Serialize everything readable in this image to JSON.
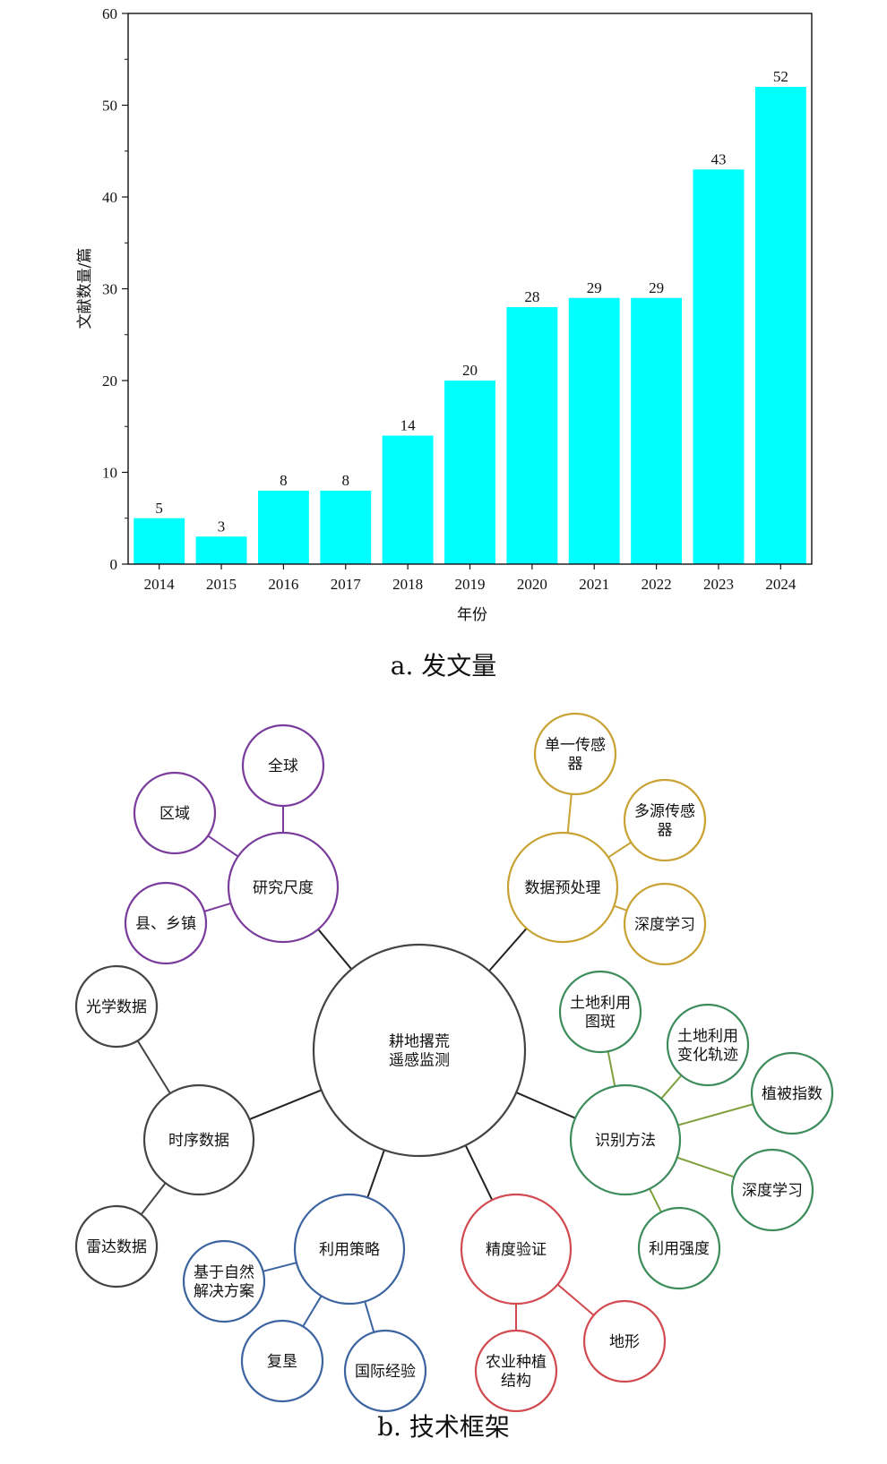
{
  "chart_data": {
    "type": "bar",
    "categories": [
      "2014",
      "2015",
      "2016",
      "2017",
      "2018",
      "2019",
      "2020",
      "2021",
      "2022",
      "2023",
      "2024"
    ],
    "values": [
      5,
      3,
      8,
      8,
      14,
      20,
      28,
      29,
      29,
      43,
      52
    ],
    "data_labels": [
      "5",
      "3",
      "8",
      "8",
      "14",
      "20",
      "28",
      "29",
      "29",
      "43",
      "52"
    ],
    "xlabel": "年份",
    "ylabel": "文献数量/篇",
    "ylim": [
      0,
      60
    ],
    "yticks": [
      "0",
      "10",
      "20",
      "30",
      "40",
      "50",
      "60"
    ],
    "grid": false,
    "bar_color": "#00FFFF"
  },
  "captions": {
    "a": "a. 发文量",
    "b": "b. 技术框架"
  },
  "mindmap": {
    "center": {
      "lines": [
        "耕地撂荒",
        "遥感监测"
      ],
      "color": "#444444"
    },
    "branches": {
      "scale": {
        "label": "研究尺度",
        "color": "#7A3C9C",
        "children": [
          {
            "lines": [
              "全球"
            ]
          },
          {
            "lines": [
              "区域"
            ]
          },
          {
            "lines": [
              "县、乡镇"
            ]
          }
        ]
      },
      "preprocess": {
        "label": "数据预处理",
        "color": "#C8A232",
        "children": [
          {
            "lines": [
              "单一传感",
              "器"
            ]
          },
          {
            "lines": [
              "多源传感",
              "器"
            ]
          },
          {
            "lines": [
              "深度学习"
            ]
          }
        ]
      },
      "timeseries": {
        "label": "时序数据",
        "color": "#444444",
        "children": [
          {
            "lines": [
              "光学数据"
            ]
          },
          {
            "lines": [
              "雷达数据"
            ]
          }
        ]
      },
      "method": {
        "label": "识别方法",
        "color": "#3C8C5C",
        "link_color": "#7EA03C",
        "children": [
          {
            "lines": [
              "土地利用",
              "图斑"
            ]
          },
          {
            "lines": [
              "土地利用",
              "变化轨迹"
            ]
          },
          {
            "lines": [
              "植被指数"
            ]
          },
          {
            "lines": [
              "深度学习"
            ]
          },
          {
            "lines": [
              "利用强度"
            ]
          }
        ]
      },
      "strategy": {
        "label": "利用策略",
        "color": "#3C64A0",
        "children": [
          {
            "lines": [
              "基于自然",
              "解决方案"
            ]
          },
          {
            "lines": [
              "复垦"
            ]
          },
          {
            "lines": [
              "国际经验"
            ]
          }
        ]
      },
      "accuracy": {
        "label": "精度验证",
        "color": "#D04A50",
        "children": [
          {
            "lines": [
              "农业种植",
              "结构"
            ]
          },
          {
            "lines": [
              "地形"
            ]
          }
        ]
      }
    }
  }
}
